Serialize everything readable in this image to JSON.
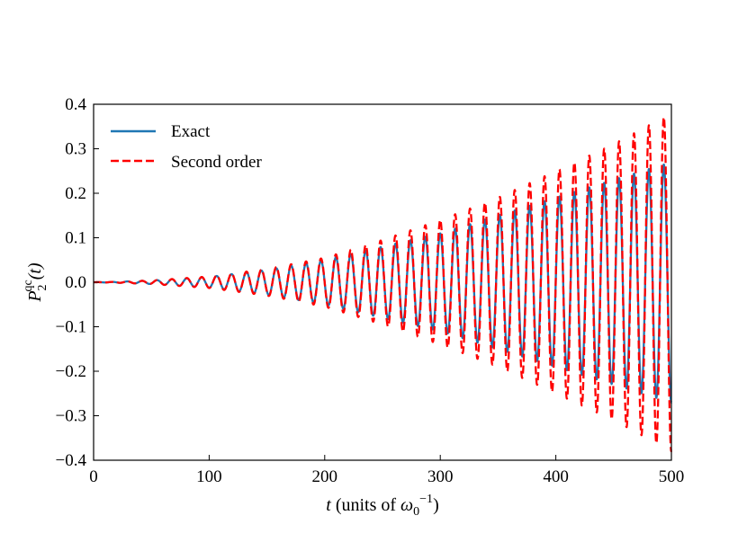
{
  "chart_data": {
    "type": "line",
    "xlabel": {
      "var": "t",
      "text_before": " (units of ",
      "omega": "ω",
      "sub": "0",
      "sup": "−1",
      "text_after": ")"
    },
    "ylabel": {
      "var": "P",
      "sub": "2",
      "sup": "qc",
      "arg": "(t)"
    },
    "xlim": [
      0,
      500
    ],
    "ylim": [
      -0.4,
      0.4
    ],
    "xticks": [
      0,
      100,
      200,
      300,
      400,
      500
    ],
    "xtick_labels": [
      "0",
      "100",
      "200",
      "300",
      "400",
      "500"
    ],
    "yticks": [
      0.4,
      0.3,
      0.2,
      0.1,
      0.0,
      -0.1,
      -0.2,
      -0.3,
      -0.4
    ],
    "ytick_labels": [
      "0.4",
      "0.3",
      "0.2",
      "0.1",
      "0.0",
      "−0.1",
      "−0.2",
      "−0.3",
      "−0.4"
    ],
    "grid": false,
    "legend_position": "top-left",
    "series": [
      {
        "name": "Exact",
        "style": "solid",
        "color": "#1f77b4",
        "period": 12.9,
        "envelope_t": [
          0,
          20,
          50,
          100,
          150,
          200,
          250,
          300,
          350,
          400,
          450,
          500
        ],
        "envelope_amp": [
          0,
          0.001,
          0.004,
          0.012,
          0.028,
          0.05,
          0.08,
          0.11,
          0.15,
          0.19,
          0.23,
          0.27
        ]
      },
      {
        "name": "Second order",
        "style": "dashed",
        "color": "#ff0000",
        "period": 12.9,
        "envelope_t": [
          0,
          20,
          50,
          100,
          150,
          200,
          250,
          300,
          350,
          400,
          450,
          500
        ],
        "envelope_amp": [
          0,
          0.001,
          0.004,
          0.013,
          0.03,
          0.055,
          0.095,
          0.14,
          0.19,
          0.25,
          0.31,
          0.38
        ]
      }
    ]
  }
}
